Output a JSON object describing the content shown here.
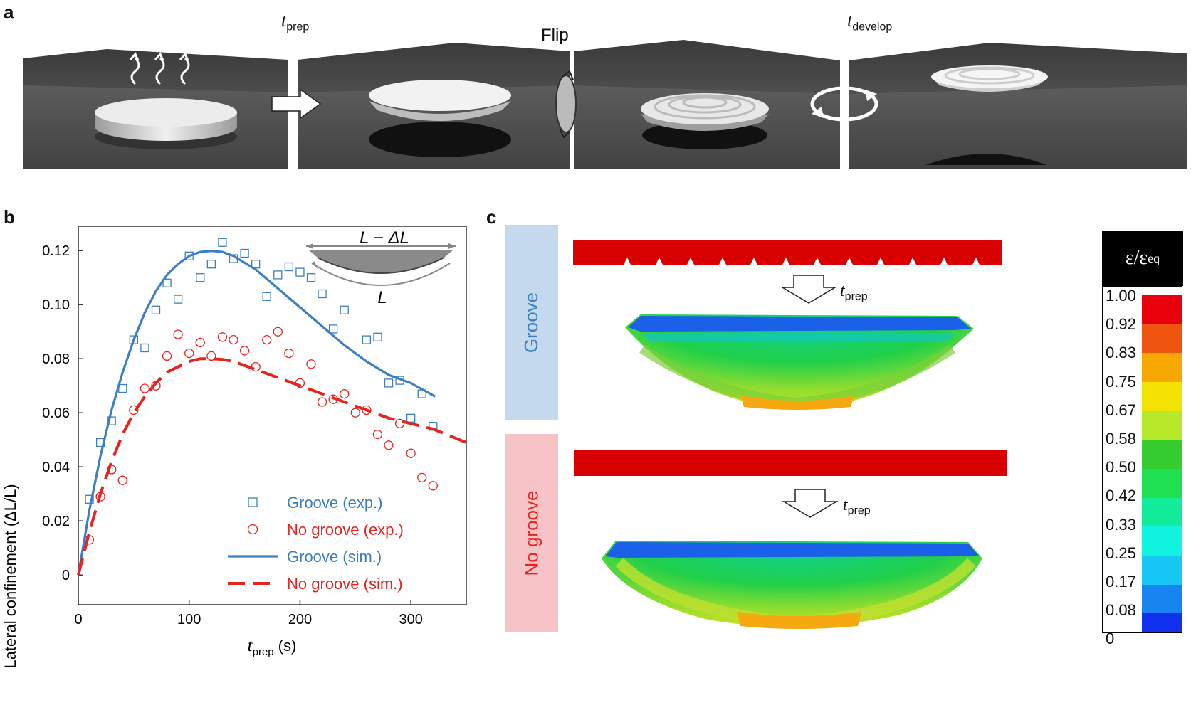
{
  "panel_a": {
    "letter": "a",
    "t_prep": {
      "t": "t",
      "sub": "prep"
    },
    "flip": "Flip",
    "t_develop": {
      "t": "t",
      "sub": "develop"
    }
  },
  "panel_b": {
    "letter": "b",
    "inset_top": "L − ΔL",
    "inset_bottom": "L"
  },
  "panel_c": {
    "letter": "c",
    "groove_label": "Groove",
    "nogroove_label": "No groove",
    "arrow_label": {
      "t": "t",
      "sub": "prep"
    },
    "colorbar": {
      "title": {
        "eps": "ε/ε",
        "sub": "eq"
      },
      "ticks": [
        "1.00",
        "0.92",
        "0.83",
        "0.75",
        "0.67",
        "0.58",
        "0.50",
        "0.42",
        "0.33",
        "0.25",
        "0.17",
        "0.08",
        "0"
      ],
      "colors": [
        "#e8000b",
        "#f05510",
        "#f7a800",
        "#f4e200",
        "#b8e82a",
        "#34cc2e",
        "#1ee050",
        "#12ec9a",
        "#10f4e0",
        "#18c8f4",
        "#1884f0",
        "#1030f0"
      ]
    }
  },
  "chart_data": {
    "type": "scatter",
    "xlabel": "t_prep (s)",
    "xlabel_main": "t",
    "xlabel_sub": "prep",
    "xlabel_unit": "(s)",
    "ylabel": "Lateral confinement (ΔL/L)",
    "xlim": [
      0,
      350
    ],
    "ylim": [
      -0.011,
      0.129
    ],
    "xticks": [
      "0",
      "100",
      "200",
      "300"
    ],
    "yticks": [
      "0",
      "0.02",
      "0.04",
      "0.06",
      "0.08",
      "0.10",
      "0.12"
    ],
    "legend_position": "bottom-right",
    "series": [
      {
        "name": "Groove (exp.)",
        "kind": "points",
        "marker": "square",
        "color": "#3a7fc1",
        "x": [
          10,
          20,
          30,
          40,
          50,
          60,
          70,
          80,
          90,
          100,
          110,
          120,
          130,
          140,
          150,
          160,
          170,
          180,
          190,
          200,
          210,
          220,
          230,
          240,
          260,
          270,
          280,
          290,
          300,
          310,
          320
        ],
        "y": [
          0.028,
          0.049,
          0.057,
          0.069,
          0.087,
          0.084,
          0.098,
          0.108,
          0.102,
          0.118,
          0.11,
          0.115,
          0.123,
          0.117,
          0.119,
          0.115,
          0.103,
          0.111,
          0.114,
          0.112,
          0.11,
          0.104,
          0.091,
          0.098,
          0.087,
          0.088,
          0.071,
          0.072,
          0.058,
          0.067,
          0.055
        ]
      },
      {
        "name": "No groove (exp.)",
        "kind": "points",
        "marker": "circle",
        "color": "#e8221c",
        "x": [
          10,
          20,
          30,
          40,
          50,
          60,
          70,
          80,
          90,
          100,
          110,
          120,
          130,
          140,
          150,
          160,
          170,
          180,
          190,
          200,
          210,
          220,
          230,
          240,
          250,
          260,
          270,
          280,
          290,
          300,
          310,
          320
        ],
        "y": [
          0.013,
          0.029,
          0.039,
          0.035,
          0.061,
          0.069,
          0.07,
          0.081,
          0.089,
          0.082,
          0.086,
          0.081,
          0.088,
          0.087,
          0.083,
          0.077,
          0.087,
          0.09,
          0.082,
          0.071,
          0.078,
          0.064,
          0.065,
          0.067,
          0.06,
          0.061,
          0.052,
          0.048,
          0.056,
          0.045,
          0.036,
          0.033
        ]
      },
      {
        "name": "Groove (sim.)",
        "kind": "line",
        "style": "solid",
        "color": "#3a7fc1",
        "x": [
          0,
          10,
          20,
          30,
          40,
          50,
          60,
          70,
          80,
          90,
          100,
          110,
          120,
          130,
          140,
          160,
          180,
          200,
          220,
          240,
          260,
          280,
          300,
          322
        ],
        "y": [
          0,
          0.024,
          0.044,
          0.061,
          0.075,
          0.087,
          0.097,
          0.105,
          0.111,
          0.115,
          0.118,
          0.1195,
          0.1199,
          0.1195,
          0.118,
          0.113,
          0.106,
          0.099,
          0.092,
          0.085,
          0.079,
          0.074,
          0.071,
          0.066
        ]
      },
      {
        "name": "No groove (sim.)",
        "kind": "line",
        "style": "dashed",
        "color": "#e8221c",
        "x": [
          0,
          10,
          20,
          30,
          40,
          50,
          60,
          70,
          80,
          90,
          100,
          110,
          120,
          130,
          140,
          160,
          180,
          200,
          220,
          240,
          260,
          280,
          300,
          320,
          350
        ],
        "y": [
          0,
          0.016,
          0.03,
          0.042,
          0.052,
          0.06,
          0.066,
          0.071,
          0.075,
          0.077,
          0.079,
          0.08,
          0.08,
          0.0797,
          0.079,
          0.076,
          0.073,
          0.07,
          0.067,
          0.064,
          0.061,
          0.058,
          0.056,
          0.054,
          0.049
        ]
      }
    ]
  }
}
